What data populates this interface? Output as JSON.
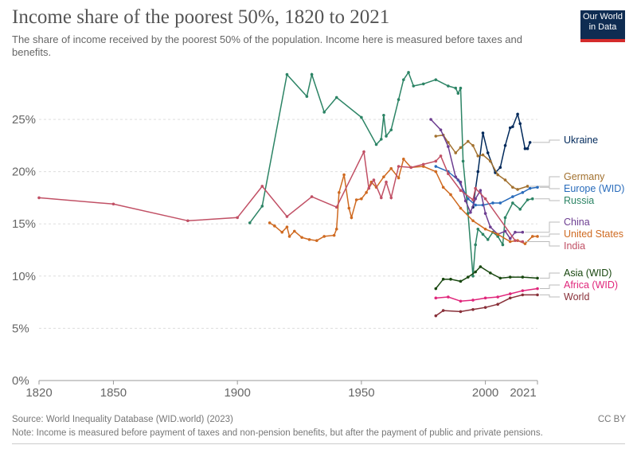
{
  "header": {
    "title": "Income share of the poorest 50%, 1820 to 2021",
    "subtitle": "The share of income received by the poorest 50% of the population. Income here is measured before taxes and benefits.",
    "logo": "Our World in Data"
  },
  "footer": {
    "source": "Source: World Inequality Database (WID.world) (2023)",
    "note": "Note: Income is measured before payment of taxes and non-pension benefits, but after the payment of public and private pensions.",
    "license": "CC BY"
  },
  "chart_data": {
    "type": "line",
    "title": "Income share of the poorest 50%, 1820 to 2021",
    "xlim": [
      1820,
      2021
    ],
    "ylim": [
      0,
      29
    ],
    "x_ticks": [
      "1820",
      "1850",
      "1900",
      "1950",
      "2000",
      "2021"
    ],
    "y_ticks": [
      "0%",
      "5%",
      "10%",
      "15%",
      "20%",
      "25%"
    ],
    "grid": "horizontal dashed",
    "legend": "right (line end labels)",
    "series": [
      {
        "name": "Ukraine",
        "color": "#00295b",
        "points": [
          [
            1995,
            16.6
          ],
          [
            1997,
            20
          ],
          [
            1999,
            23.7
          ],
          [
            2001,
            21.8
          ],
          [
            2004,
            19.9
          ],
          [
            2006,
            20.4
          ],
          [
            2008,
            22.5
          ],
          [
            2010,
            24.2
          ],
          [
            2011,
            24.3
          ],
          [
            2013,
            25.5
          ],
          [
            2014,
            24.6
          ],
          [
            2016,
            22.2
          ],
          [
            2017,
            22.2
          ],
          [
            2018,
            22.8
          ]
        ]
      },
      {
        "name": "Germany",
        "color": "#a2712f",
        "points": [
          [
            1980,
            23.4
          ],
          [
            1983,
            23.5
          ],
          [
            1985,
            22.8
          ],
          [
            1988,
            21.8
          ],
          [
            1990,
            22.3
          ],
          [
            1993,
            22.9
          ],
          [
            1995,
            22.5
          ],
          [
            1997,
            21.5
          ],
          [
            1999,
            21.6
          ],
          [
            2002,
            21.0
          ],
          [
            2005,
            19.7
          ],
          [
            2008,
            19.2
          ],
          [
            2011,
            18.5
          ],
          [
            2013,
            18.3
          ],
          [
            2017,
            18.6
          ]
        ]
      },
      {
        "name": "Europe (WID)",
        "color": "#286bbb",
        "points": [
          [
            1980,
            20.5
          ],
          [
            1985,
            20.0
          ],
          [
            1989,
            19.2
          ],
          [
            1993,
            17.4
          ],
          [
            1996,
            16.8
          ],
          [
            1999,
            16.8
          ],
          [
            2003,
            17.0
          ],
          [
            2006,
            17.0
          ],
          [
            2011,
            17.6
          ],
          [
            2015,
            18.0
          ],
          [
            2018,
            18.4
          ],
          [
            2021,
            18.5
          ]
        ]
      },
      {
        "name": "Russia",
        "color": "#2c8465",
        "points": [
          [
            1905,
            15.1
          ],
          [
            1910,
            16.7
          ],
          [
            1920,
            29.3
          ],
          [
            1928,
            27.2
          ],
          [
            1930,
            29.3
          ],
          [
            1935,
            25.7
          ],
          [
            1940,
            27.1
          ],
          [
            1950,
            25.2
          ],
          [
            1956,
            22.6
          ],
          [
            1958,
            23.1
          ],
          [
            1959,
            25.4
          ],
          [
            1960,
            23.4
          ],
          [
            1962,
            24.0
          ],
          [
            1965,
            26.9
          ],
          [
            1967,
            28.8
          ],
          [
            1969,
            29.5
          ],
          [
            1971,
            28.2
          ],
          [
            1975,
            28.4
          ],
          [
            1980,
            28.8
          ],
          [
            1985,
            28.2
          ],
          [
            1988,
            28.0
          ],
          [
            1989,
            27.5
          ],
          [
            1990,
            28.0
          ],
          [
            1991,
            21.0
          ],
          [
            1993,
            16.0
          ],
          [
            1995,
            10.0
          ],
          [
            1996,
            13.0
          ],
          [
            1997,
            14.5
          ],
          [
            1999,
            14.0
          ],
          [
            2001,
            13.5
          ],
          [
            2003,
            14.2
          ],
          [
            2005,
            13.8
          ],
          [
            2007,
            13.0
          ],
          [
            2008,
            15.6
          ],
          [
            2011,
            17.0
          ],
          [
            2014,
            16.4
          ],
          [
            2017,
            17.3
          ],
          [
            2019,
            17.4
          ]
        ]
      },
      {
        "name": "China",
        "color": "#6d3e91",
        "points": [
          [
            1978,
            25.0
          ],
          [
            1982,
            24.0
          ],
          [
            1985,
            22.4
          ],
          [
            1988,
            19.5
          ],
          [
            1990,
            19.0
          ],
          [
            1992,
            17.2
          ],
          [
            1994,
            16.1
          ],
          [
            1996,
            17.4
          ],
          [
            1998,
            18.2
          ],
          [
            2000,
            16.0
          ],
          [
            2002,
            14.7
          ],
          [
            2005,
            14.0
          ],
          [
            2008,
            14.3
          ],
          [
            2010,
            13.6
          ],
          [
            2012,
            14.2
          ],
          [
            2015,
            14.2
          ]
        ]
      },
      {
        "name": "United States",
        "color": "#cf6a21",
        "points": [
          [
            1913,
            15.1
          ],
          [
            1915,
            14.8
          ],
          [
            1918,
            14.2
          ],
          [
            1920,
            14.7
          ],
          [
            1921,
            13.8
          ],
          [
            1923,
            14.3
          ],
          [
            1926,
            13.7
          ],
          [
            1929,
            13.5
          ],
          [
            1932,
            13.4
          ],
          [
            1935,
            13.8
          ],
          [
            1939,
            13.9
          ],
          [
            1940,
            14.5
          ],
          [
            1941,
            18.0
          ],
          [
            1943,
            19.7
          ],
          [
            1945,
            16.5
          ],
          [
            1946,
            15.6
          ],
          [
            1948,
            17.3
          ],
          [
            1950,
            17.4
          ],
          [
            1952,
            18.0
          ],
          [
            1954,
            19.0
          ],
          [
            1956,
            18.5
          ],
          [
            1959,
            19.5
          ],
          [
            1962,
            20.3
          ],
          [
            1965,
            19.4
          ],
          [
            1967,
            21.2
          ],
          [
            1970,
            20.4
          ],
          [
            1975,
            20.5
          ],
          [
            1980,
            20.0
          ],
          [
            1983,
            18.5
          ],
          [
            1986,
            17.8
          ],
          [
            1990,
            16.5
          ],
          [
            1995,
            15.3
          ],
          [
            2000,
            14.5
          ],
          [
            2005,
            14.0
          ],
          [
            2010,
            13.3
          ],
          [
            2013,
            13.4
          ],
          [
            2016,
            13.1
          ],
          [
            2019,
            13.8
          ],
          [
            2021,
            13.8
          ]
        ]
      },
      {
        "name": "India",
        "color": "#c15065",
        "points": [
          [
            1820,
            17.5
          ],
          [
            1850,
            16.9
          ],
          [
            1880,
            15.3
          ],
          [
            1900,
            15.6
          ],
          [
            1910,
            18.6
          ],
          [
            1920,
            15.7
          ],
          [
            1930,
            17.6
          ],
          [
            1940,
            16.6
          ],
          [
            1951,
            21.9
          ],
          [
            1953,
            18.4
          ],
          [
            1955,
            19.2
          ],
          [
            1958,
            17.5
          ],
          [
            1960,
            19.0
          ],
          [
            1962,
            17.5
          ],
          [
            1965,
            20.5
          ],
          [
            1970,
            20.4
          ],
          [
            1975,
            20.7
          ],
          [
            1980,
            21.0
          ],
          [
            1982,
            21.5
          ],
          [
            1985,
            19.8
          ],
          [
            1990,
            18.2
          ],
          [
            1995,
            17.3
          ],
          [
            1996,
            18.4
          ],
          [
            2000,
            17.4
          ],
          [
            2012,
            13.4
          ],
          [
            2015,
            13.3
          ]
        ]
      },
      {
        "name": "Asia (WID)",
        "color": "#18470f",
        "points": [
          [
            1980,
            8.8
          ],
          [
            1983,
            9.7
          ],
          [
            1986,
            9.7
          ],
          [
            1990,
            9.5
          ],
          [
            1993,
            9.9
          ],
          [
            1996,
            10.4
          ],
          [
            1998,
            10.9
          ],
          [
            2002,
            10.3
          ],
          [
            2006,
            9.8
          ],
          [
            2010,
            9.9
          ],
          [
            2015,
            9.9
          ],
          [
            2021,
            9.8
          ]
        ]
      },
      {
        "name": "Africa (WID)",
        "color": "#e0267b",
        "points": [
          [
            1980,
            7.9
          ],
          [
            1985,
            8.0
          ],
          [
            1990,
            7.6
          ],
          [
            1995,
            7.7
          ],
          [
            2000,
            7.9
          ],
          [
            2005,
            8.0
          ],
          [
            2010,
            8.3
          ],
          [
            2015,
            8.6
          ],
          [
            2021,
            8.8
          ]
        ]
      },
      {
        "name": "World",
        "color": "#883039",
        "points": [
          [
            1980,
            6.2
          ],
          [
            1983,
            6.7
          ],
          [
            1990,
            6.6
          ],
          [
            1995,
            6.8
          ],
          [
            2000,
            7.0
          ],
          [
            2005,
            7.3
          ],
          [
            2010,
            7.9
          ],
          [
            2015,
            8.2
          ],
          [
            2021,
            8.2
          ]
        ]
      }
    ]
  }
}
